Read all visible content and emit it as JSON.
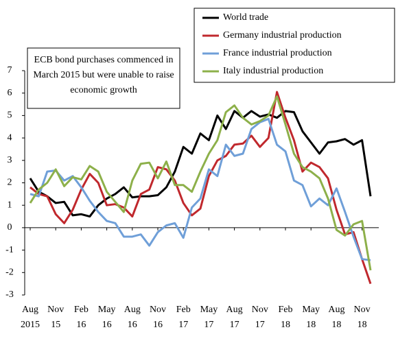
{
  "chart_data": {
    "type": "line",
    "annotation": [
      "ECB bond purchases commenced in",
      "March 2015  but were unable to raise",
      "economic growth"
    ],
    "categories": [
      [
        "Aug",
        "2015"
      ],
      null,
      null,
      [
        "Nov",
        "15"
      ],
      null,
      null,
      [
        "Feb",
        "16"
      ],
      null,
      null,
      [
        "May",
        "16"
      ],
      null,
      null,
      [
        "Aug",
        "16"
      ],
      null,
      null,
      [
        "Nov",
        "16"
      ],
      null,
      null,
      [
        "Feb",
        "17"
      ],
      null,
      null,
      [
        "May",
        "17"
      ],
      null,
      null,
      [
        "Aug",
        "17"
      ],
      null,
      null,
      [
        "Nov",
        "17"
      ],
      null,
      null,
      [
        "Feb",
        "18"
      ],
      null,
      null,
      [
        "May",
        "18"
      ],
      null,
      null,
      [
        "Aug",
        "18"
      ],
      null,
      null,
      [
        "Nov",
        "18"
      ],
      null
    ],
    "series": [
      {
        "name": "World trade",
        "color": "#000000",
        "values": [
          2.2,
          1.6,
          1.4,
          1.1,
          1.15,
          0.55,
          0.6,
          0.5,
          1.0,
          1.3,
          1.5,
          1.8,
          1.35,
          1.4,
          1.4,
          1.45,
          1.8,
          2.5,
          3.6,
          3.3,
          4.2,
          3.9,
          5.0,
          4.4,
          5.2,
          4.9,
          5.2,
          4.95,
          5.05,
          4.9,
          5.2,
          5.15,
          4.3,
          3.8,
          3.3,
          3.8,
          3.85,
          3.95,
          3.7,
          3.9,
          1.4
        ]
      },
      {
        "name": "Germany industrial production",
        "color": "#c0282d",
        "values": [
          1.8,
          1.5,
          1.4,
          0.6,
          0.2,
          0.8,
          1.7,
          2.4,
          2.0,
          1.0,
          1.05,
          0.9,
          0.5,
          1.5,
          1.7,
          2.7,
          2.6,
          2.1,
          1.1,
          0.55,
          0.85,
          2.3,
          3.0,
          3.2,
          3.7,
          3.75,
          4.1,
          3.6,
          4.0,
          6.05,
          4.9,
          3.9,
          2.5,
          2.9,
          2.7,
          2.2,
          0.8,
          -0.3,
          -0.2,
          -1.4,
          -2.5
        ]
      },
      {
        "name": "France industrial production",
        "color": "#6f9fd8",
        "values": [
          1.5,
          1.4,
          2.5,
          2.55,
          2.1,
          2.3,
          1.8,
          1.2,
          0.7,
          0.3,
          0.2,
          -0.4,
          -0.4,
          -0.3,
          -0.8,
          -0.2,
          0.1,
          0.2,
          -0.45,
          0.9,
          1.3,
          2.6,
          2.3,
          3.7,
          3.2,
          3.3,
          4.4,
          4.7,
          4.85,
          3.7,
          3.4,
          2.1,
          1.9,
          0.95,
          1.3,
          1.0,
          1.75,
          0.7,
          -0.4,
          -1.4,
          -1.45
        ]
      },
      {
        "name": "Italy industrial production",
        "color": "#8db04a",
        "values": [
          1.1,
          1.7,
          2.0,
          2.6,
          1.85,
          2.25,
          2.15,
          2.75,
          2.5,
          1.6,
          1.15,
          0.7,
          2.1,
          2.85,
          2.9,
          2.2,
          2.95,
          1.9,
          1.9,
          1.6,
          2.5,
          3.3,
          3.9,
          5.15,
          5.45,
          4.9,
          4.6,
          4.75,
          5.0,
          5.85,
          4.6,
          3.3,
          2.7,
          2.5,
          2.2,
          1.3,
          -0.1,
          -0.35,
          0.15,
          0.3,
          -1.9
        ]
      }
    ],
    "ylim": [
      -3,
      7
    ],
    "yticks": [
      -3,
      -2,
      -1,
      0,
      1,
      2,
      3,
      4,
      5,
      6,
      7
    ],
    "legend": "upper right"
  }
}
